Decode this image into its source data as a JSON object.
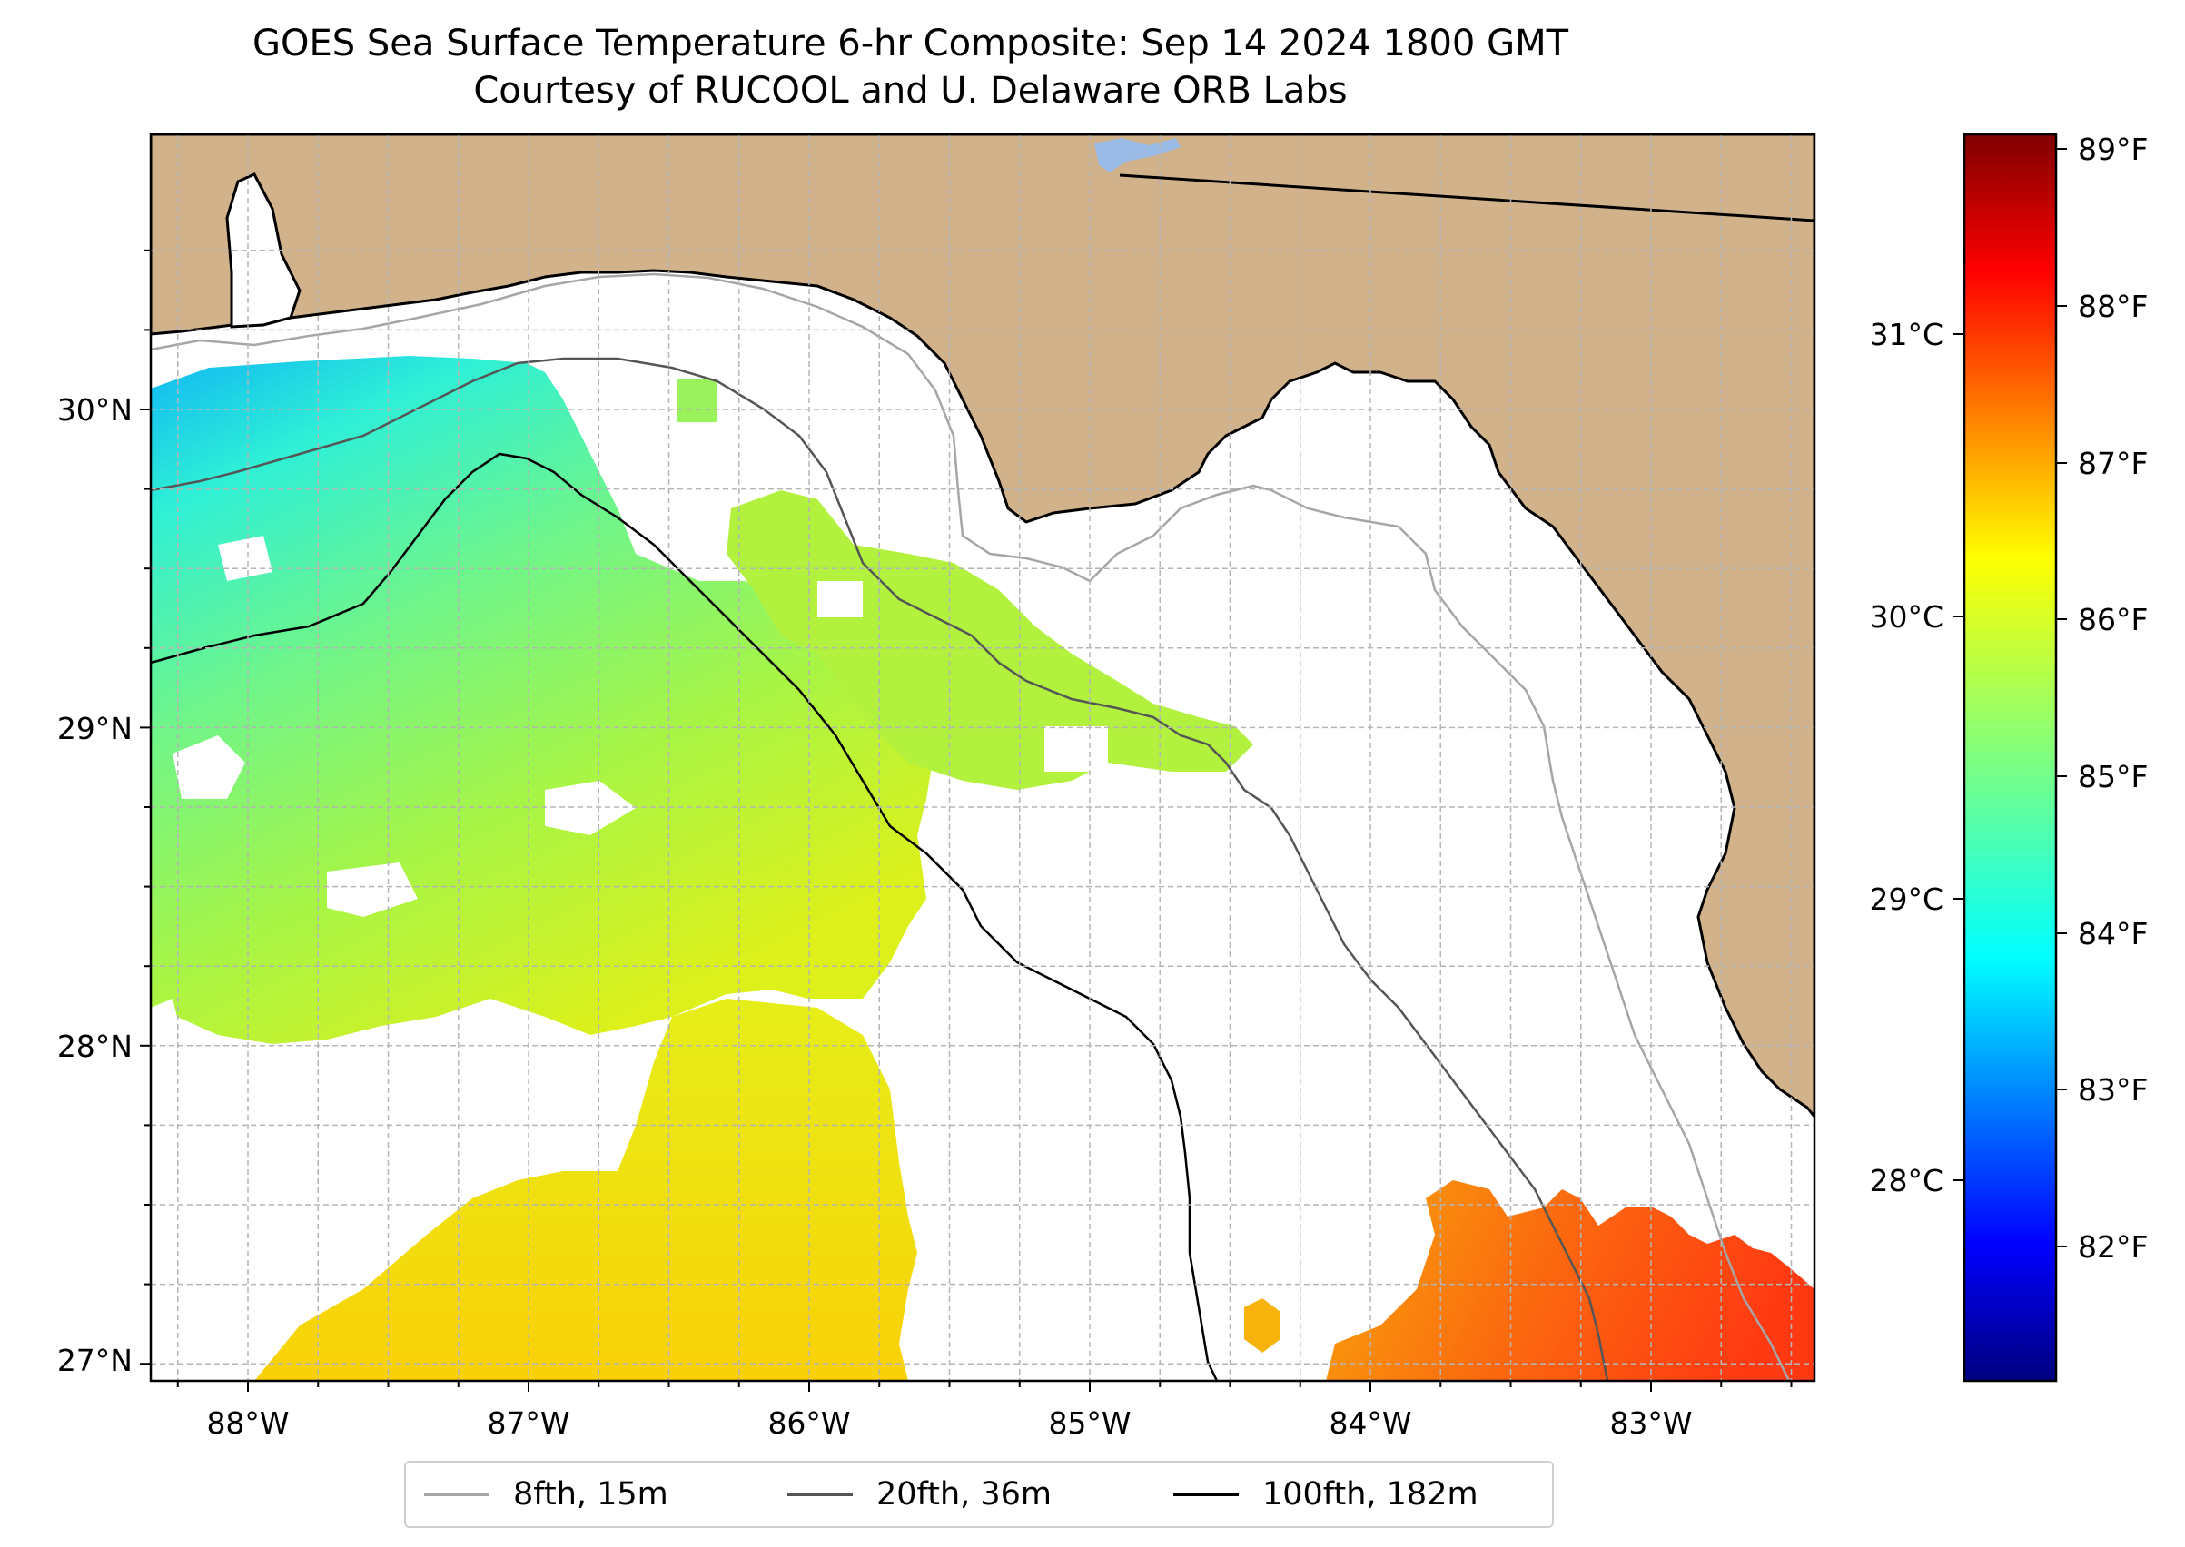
{
  "title": "GOES Sea Surface Temperature 6-hr Composite: Sep 14 2024 1800 GMT",
  "subtitle": "Courtesy of RUCOOL and U. Delaware ORB Labs",
  "map": {
    "lon_labels": [
      "88°W",
      "87°W",
      "86°W",
      "85°W",
      "84°W",
      "83°W"
    ],
    "lat_labels": [
      "30°N",
      "29°N",
      "28°N",
      "27°N"
    ],
    "colors": {
      "land": "#d1b28b",
      "ocean": "#ffffff",
      "lake": "#9bbce6",
      "grid": "#b5b5b5"
    },
    "sst_colormap": "jet"
  },
  "colorbar": {
    "colormap": "jet",
    "celsius_labels": [
      "31°C",
      "30°C",
      "29°C",
      "28°C"
    ],
    "fahrenheit_labels": [
      "89°F",
      "88°F",
      "87°F",
      "86°F",
      "85°F",
      "84°F",
      "83°F",
      "82°F"
    ]
  },
  "legend": {
    "items": [
      {
        "label": "8fth, 15m",
        "color": "#a6a6a6"
      },
      {
        "label": "20fth, 36m",
        "color": "#555555"
      },
      {
        "label": "100fth, 182m",
        "color": "#000000"
      }
    ]
  }
}
